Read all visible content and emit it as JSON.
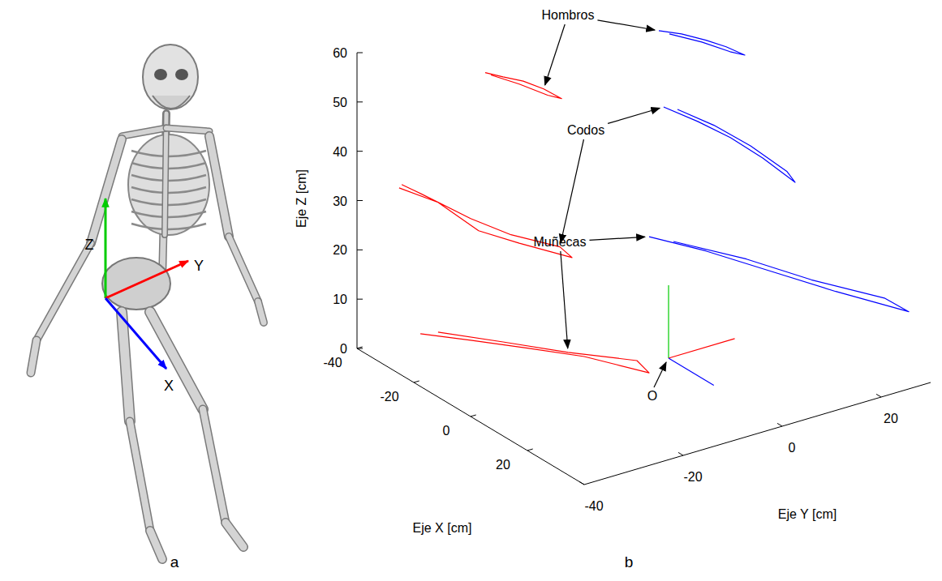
{
  "chart_data": {
    "type": "line3d",
    "panel_label": "b",
    "xlabel": "Eje X [cm]",
    "ylabel": "Eje Y [cm]",
    "zlabel": "Eje Z [cm]",
    "xlim": [
      -40,
      40
    ],
    "ylim": [
      -40,
      30
    ],
    "zlim": [
      0,
      60
    ],
    "xticks": [
      -40,
      -20,
      0,
      20
    ],
    "yticks": [
      -40,
      -20,
      0,
      20
    ],
    "zticks": [
      0,
      10,
      20,
      30,
      40,
      50,
      60
    ],
    "grid": false,
    "line_style": "solid",
    "series": [
      {
        "color": "#ff0000",
        "x": [
          -33.2,
          -26.9,
          -19.8,
          -12.6,
          -6.3,
          -11.2,
          -21.2,
          -31.2
        ],
        "y": [
          -18,
          -18,
          -18,
          -18,
          -18,
          -18,
          -18,
          -18
        ],
        "z": [
          51.8,
          53.1,
          54.7,
          55.6,
          55.8,
          54.8,
          53.6,
          52.0
        ]
      },
      {
        "color": "#0000ff",
        "x": [
          -34.8,
          -26.8,
          -18.2,
          -11.1,
          -4.5,
          -9.7,
          -19.7,
          -31.1
        ],
        "y": [
          18,
          18,
          18,
          18,
          18,
          18,
          18,
          18
        ],
        "z": [
          49.1,
          51.2,
          52.9,
          54.0,
          54.6,
          53.5,
          52.0,
          49.7
        ]
      },
      {
        "color": "#ff0000",
        "x": [
          -39.1,
          -25.4,
          -11.1,
          3.2,
          21.8,
          17.5,
          0.3,
          -13.9,
          -31.1,
          -38.2
        ],
        "y": [
          -32,
          -32,
          -32,
          -32,
          -32,
          -32,
          -32,
          -32,
          -32,
          -32
        ],
        "z": [
          30.5,
          32.3,
          31.5,
          33.9,
          37.4,
          38.1,
          34.6,
          33.0,
          32.0,
          31.5
        ]
      },
      {
        "color": "#0000ff",
        "x": [
          -36.6,
          -24.6,
          -13.1,
          -1.7,
          9.7,
          6.9,
          -6.0,
          -18.9,
          -31.7
        ],
        "y": [
          20,
          20,
          20,
          20,
          20,
          20,
          20,
          20,
          20
        ],
        "z": [
          32.4,
          33.6,
          34.3,
          34.1,
          33.1,
          34.3,
          35.1,
          34.8,
          33.6
        ]
      },
      {
        "color": "#ff0000",
        "x": [
          -35.1,
          -17.4,
          2.6,
          22.6,
          27.0,
          31.5,
          27.2,
          13.4,
          -6.0,
          -28.9
        ],
        "y": [
          -30,
          -30,
          -30,
          -30,
          -26,
          -22,
          -22,
          -28,
          -30,
          -30
        ],
        "z": [
          1.7,
          6.5,
          11.8,
          17.0,
          15.7,
          14.4,
          15.4,
          14.1,
          10.1,
          4.2
        ]
      },
      {
        "color": "#0000ff",
        "x": [
          -24.3,
          -4.3,
          18.6,
          31.0,
          35.8,
          30.7,
          22.4,
          10.0,
          -15.7
        ],
        "y": [
          10,
          10,
          10,
          16,
          28,
          26,
          16,
          10,
          10
        ],
        "z": [
          13.3,
          17.3,
          21.1,
          19.5,
          13.5,
          15.1,
          18.9,
          20.6,
          15.3
        ]
      }
    ],
    "annotations": [
      {
        "text": "Hombros",
        "points_to": [
          0,
          1
        ]
      },
      {
        "text": "Codos",
        "points_to": [
          2,
          3
        ]
      },
      {
        "text": "Muñecas",
        "points_to": [
          4,
          5
        ]
      }
    ],
    "origin": {
      "label": "O",
      "x": 0,
      "y": 0,
      "z": 0
    }
  },
  "illustration": {
    "panel_label": "a",
    "axis_labels": {
      "x": "X",
      "y": "Y",
      "z": "Z"
    }
  }
}
